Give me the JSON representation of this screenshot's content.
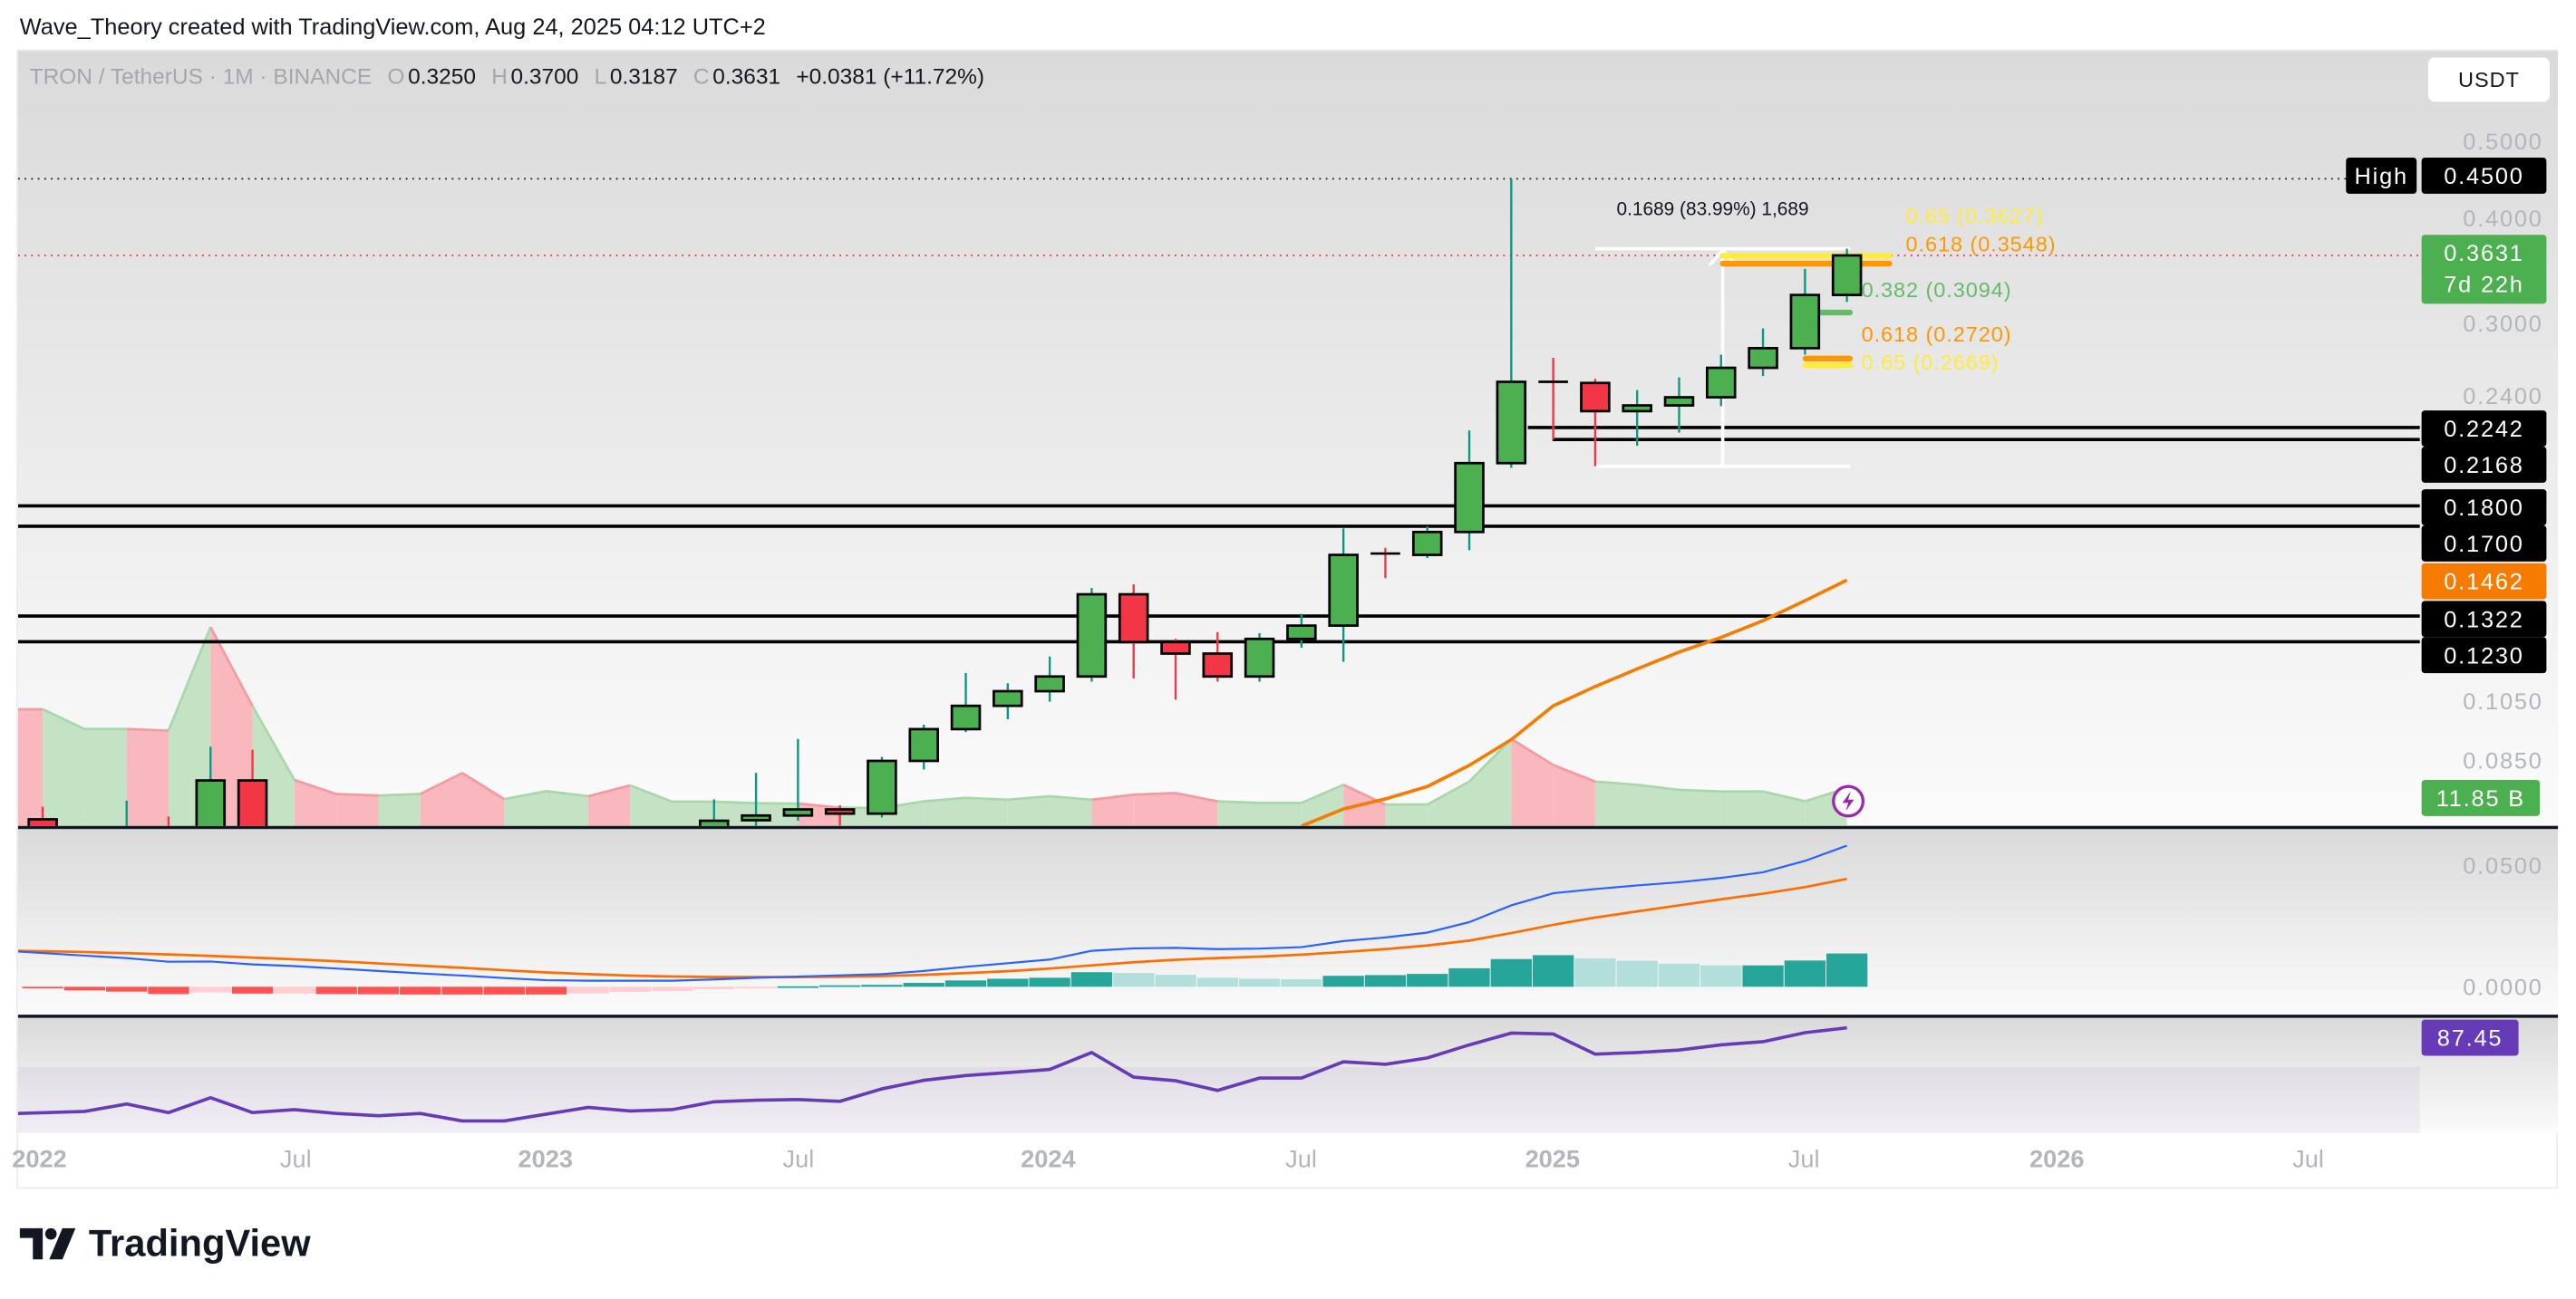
{
  "header": {
    "attribution": "Wave_Theory created with TradingView.com, Aug 24, 2025 04:12 UTC+2"
  },
  "legend": {
    "symbol": "TRON / TetherUS · 1M · BINANCE",
    "o_label": "O",
    "o": "0.3250",
    "h_label": "H",
    "h": "0.3700",
    "l_label": "L",
    "l": "0.3187",
    "c_label": "C",
    "c": "0.3631",
    "change": "+0.0381 (+11.72%)"
  },
  "currency_button": "USDT",
  "price_axis": {
    "ticks": [
      "0.5000",
      "0.4000",
      "0.3000",
      "0.2400",
      "0.1050",
      "0.0850"
    ]
  },
  "tags": {
    "high_label": "High",
    "high_value": "0.4500",
    "last_price": "0.3631",
    "countdown": "7d 22h",
    "levels": [
      "0.2242",
      "0.2168",
      "0.1800",
      "0.1700",
      "0.1462",
      "0.1322",
      "0.1230"
    ],
    "volume": "11.85 B",
    "rsi": "87.45"
  },
  "macd_axis": {
    "ticks": [
      "0.0500",
      "0.0000"
    ]
  },
  "time_axis": {
    "labels": [
      "2022",
      "Jul",
      "2023",
      "Jul",
      "2024",
      "Jul",
      "2025",
      "Jul",
      "2026",
      "Jul"
    ]
  },
  "fib": {
    "measure": "0.1689 (83.99%) 1,689",
    "upper_65": "0.65 (0.3627)",
    "upper_618": "0.618 (0.3548)",
    "mid_382": "0.382 (0.3094)",
    "lower_618": "0.618 (0.2720)",
    "lower_65": "0.65 (0.2669)"
  },
  "logo": "TradingView",
  "colors": {
    "up": "#4caf50",
    "down": "#f23645",
    "wick_up": "#089981",
    "ema": "#f57c00",
    "macd": "#2962ff",
    "signal": "#ff6d00",
    "rsi": "#673ab7",
    "fib_yellow": "#ffeb3b",
    "fib_orange": "#ff9800",
    "fib_green": "#66bb6a",
    "last_price": "#4caf50",
    "level": "#000000"
  },
  "chart_data": {
    "type": "candlestick",
    "symbol": "TRON / TetherUS",
    "interval": "1M",
    "exchange": "BINANCE",
    "y_scale": "log",
    "ylim": [
      0.0734,
      0.53
    ],
    "x_range": [
      "2022-01",
      "2026-09"
    ],
    "candles": [
      {
        "date": "2022-01",
        "o": 0.0748,
        "h": 0.0775,
        "l": 0.055,
        "c": 0.062
      },
      {
        "date": "2022-03",
        "o": 0.062,
        "h": 0.0788,
        "l": 0.058,
        "c": 0.066
      },
      {
        "date": "2022-04",
        "o": 0.066,
        "h": 0.0754,
        "l": 0.06,
        "c": 0.065
      },
      {
        "date": "2022-05",
        "o": 0.065,
        "h": 0.0917,
        "l": 0.06,
        "c": 0.0834
      },
      {
        "date": "2022-06",
        "o": 0.0834,
        "h": 0.0909,
        "l": 0.052,
        "c": 0.065
      },
      {
        "date": "2023-05",
        "o": 0.07,
        "h": 0.0791,
        "l": 0.068,
        "c": 0.0745
      },
      {
        "date": "2023-06",
        "o": 0.0746,
        "h": 0.0852,
        "l": 0.072,
        "c": 0.0756
      },
      {
        "date": "2023-07",
        "o": 0.0756,
        "h": 0.0937,
        "l": 0.0745,
        "c": 0.0769
      },
      {
        "date": "2023-08",
        "o": 0.0769,
        "h": 0.0778,
        "l": 0.0735,
        "c": 0.076
      },
      {
        "date": "2023-09",
        "o": 0.076,
        "h": 0.0891,
        "l": 0.0752,
        "c": 0.0881
      },
      {
        "date": "2023-10",
        "o": 0.0881,
        "h": 0.0975,
        "l": 0.086,
        "c": 0.0963
      },
      {
        "date": "2023-11",
        "o": 0.0963,
        "h": 0.1127,
        "l": 0.0955,
        "c": 0.1028
      },
      {
        "date": "2023-12",
        "o": 0.1028,
        "h": 0.1095,
        "l": 0.099,
        "c": 0.1071
      },
      {
        "date": "2024-01",
        "o": 0.1071,
        "h": 0.118,
        "l": 0.104,
        "c": 0.1116
      },
      {
        "date": "2024-02",
        "o": 0.1116,
        "h": 0.143,
        "l": 0.11,
        "c": 0.1405
      },
      {
        "date": "2024-03",
        "o": 0.1405,
        "h": 0.1445,
        "l": 0.111,
        "c": 0.1229
      },
      {
        "date": "2024-04",
        "o": 0.1229,
        "h": 0.124,
        "l": 0.1046,
        "c": 0.119
      },
      {
        "date": "2024-05",
        "o": 0.119,
        "h": 0.1264,
        "l": 0.11,
        "c": 0.1116
      },
      {
        "date": "2024-06",
        "o": 0.1116,
        "h": 0.126,
        "l": 0.11,
        "c": 0.124
      },
      {
        "date": "2024-07",
        "o": 0.124,
        "h": 0.133,
        "l": 0.121,
        "c": 0.1287
      },
      {
        "date": "2024-08",
        "o": 0.1287,
        "h": 0.169,
        "l": 0.1163,
        "c": 0.1569
      },
      {
        "date": "2024-09",
        "o": 0.1575,
        "h": 0.16,
        "l": 0.147,
        "c": 0.1569
      },
      {
        "date": "2024-10",
        "o": 0.1569,
        "h": 0.17,
        "l": 0.1555,
        "c": 0.1673
      },
      {
        "date": "2024-11",
        "o": 0.1673,
        "h": 0.2224,
        "l": 0.159,
        "c": 0.2029
      },
      {
        "date": "2024-12",
        "o": 0.2029,
        "h": 0.45,
        "l": 0.2003,
        "c": 0.2548
      },
      {
        "date": "2025-01",
        "o": 0.2548,
        "h": 0.2725,
        "l": 0.2168,
        "c": 0.254
      },
      {
        "date": "2025-02",
        "o": 0.254,
        "h": 0.257,
        "l": 0.2011,
        "c": 0.2347
      },
      {
        "date": "2025-03",
        "o": 0.2347,
        "h": 0.249,
        "l": 0.213,
        "c": 0.2385
      },
      {
        "date": "2025-04",
        "o": 0.2385,
        "h": 0.258,
        "l": 0.221,
        "c": 0.244
      },
      {
        "date": "2025-05",
        "o": 0.244,
        "h": 0.275,
        "l": 0.238,
        "c": 0.265
      },
      {
        "date": "2025-06",
        "o": 0.265,
        "h": 0.296,
        "l": 0.259,
        "c": 0.28
      },
      {
        "date": "2025-07",
        "o": 0.28,
        "h": 0.3496,
        "l": 0.275,
        "c": 0.325
      },
      {
        "date": "2025-08",
        "o": 0.325,
        "h": 0.37,
        "l": 0.3187,
        "c": 0.3631
      }
    ],
    "volume_unit": "B",
    "volume": [
      {
        "date": "2022-01",
        "v": 36.6,
        "up": false
      },
      {
        "date": "2022-02",
        "v": 30.4,
        "up": true
      },
      {
        "date": "2022-03",
        "v": 30.4,
        "up": true
      },
      {
        "date": "2022-04",
        "v": 29.9,
        "up": false
      },
      {
        "date": "2022-05",
        "v": 62.4,
        "up": true
      },
      {
        "date": "2022-06",
        "v": 37.6,
        "up": false
      },
      {
        "date": "2022-07",
        "v": 14.4,
        "up": true
      },
      {
        "date": "2022-08",
        "v": 10.0,
        "up": false
      },
      {
        "date": "2022-09",
        "v": 9.5,
        "up": false
      },
      {
        "date": "2022-10",
        "v": 10.0,
        "up": true
      },
      {
        "date": "2022-11",
        "v": 16.6,
        "up": false
      },
      {
        "date": "2022-12",
        "v": 8.4,
        "up": false
      },
      {
        "date": "2023-01",
        "v": 10.9,
        "up": true
      },
      {
        "date": "2023-02",
        "v": 9.3,
        "up": true
      },
      {
        "date": "2023-03",
        "v": 12.7,
        "up": false
      },
      {
        "date": "2023-04",
        "v": 7.6,
        "up": true
      },
      {
        "date": "2023-05",
        "v": 7.6,
        "up": true
      },
      {
        "date": "2023-06",
        "v": 7.1,
        "up": true
      },
      {
        "date": "2023-07",
        "v": 7.0,
        "up": true
      },
      {
        "date": "2023-08",
        "v": 5.7,
        "up": false
      },
      {
        "date": "2023-09",
        "v": 5.6,
        "up": true
      },
      {
        "date": "2023-10",
        "v": 7.7,
        "up": true
      },
      {
        "date": "2023-11",
        "v": 8.8,
        "up": true
      },
      {
        "date": "2023-12",
        "v": 8.2,
        "up": true
      },
      {
        "date": "2024-01",
        "v": 9.3,
        "up": true
      },
      {
        "date": "2024-02",
        "v": 8.2,
        "up": true
      },
      {
        "date": "2024-03",
        "v": 9.8,
        "up": false
      },
      {
        "date": "2024-04",
        "v": 10.3,
        "up": false
      },
      {
        "date": "2024-05",
        "v": 7.7,
        "up": false
      },
      {
        "date": "2024-06",
        "v": 7.2,
        "up": true
      },
      {
        "date": "2024-07",
        "v": 7.2,
        "up": true
      },
      {
        "date": "2024-08",
        "v": 12.9,
        "up": true
      },
      {
        "date": "2024-09",
        "v": 6.7,
        "up": false
      },
      {
        "date": "2024-10",
        "v": 6.7,
        "up": true
      },
      {
        "date": "2024-11",
        "v": 13.9,
        "up": true
      },
      {
        "date": "2024-12",
        "v": 27.3,
        "up": true
      },
      {
        "date": "2025-01",
        "v": 19.1,
        "up": false
      },
      {
        "date": "2025-02",
        "v": 13.9,
        "up": false
      },
      {
        "date": "2025-03",
        "v": 12.9,
        "up": true
      },
      {
        "date": "2025-04",
        "v": 11.3,
        "up": true
      },
      {
        "date": "2025-05",
        "v": 10.8,
        "up": true
      },
      {
        "date": "2025-06",
        "v": 10.8,
        "up": true
      },
      {
        "date": "2025-07",
        "v": 7.7,
        "up": true
      },
      {
        "date": "2025-08",
        "v": 11.85,
        "up": true
      }
    ],
    "moving_average": [
      {
        "date": "2024-07",
        "v": 0.0734
      },
      {
        "date": "2024-08",
        "v": 0.077
      },
      {
        "date": "2024-09",
        "v": 0.0792
      },
      {
        "date": "2024-10",
        "v": 0.082
      },
      {
        "date": "2024-11",
        "v": 0.087
      },
      {
        "date": "2024-12",
        "v": 0.0935
      },
      {
        "date": "2025-01",
        "v": 0.1028
      },
      {
        "date": "2025-02",
        "v": 0.1085
      },
      {
        "date": "2025-03",
        "v": 0.114
      },
      {
        "date": "2025-04",
        "v": 0.1195
      },
      {
        "date": "2025-05",
        "v": 0.1245
      },
      {
        "date": "2025-06",
        "v": 0.1305
      },
      {
        "date": "2025-07",
        "v": 0.138
      },
      {
        "date": "2025-08",
        "v": 0.1462
      }
    ],
    "horizontal_levels": [
      0.2242,
      0.2168,
      0.18,
      0.17,
      0.1322,
      0.123
    ],
    "all_time_high": 0.45,
    "last_price": 0.3631,
    "fib_measure": {
      "low": 0.2011,
      "high": 0.37,
      "from": "2025-02",
      "to": "2025-08"
    },
    "fib_levels": [
      0.3627,
      0.3548,
      0.3094,
      0.272,
      0.2669
    ],
    "macd": {
      "ylim": [
        -0.006,
        0.065
      ],
      "start": "2022-01",
      "macd": [
        0.0145,
        0.0128,
        0.0118,
        0.0103,
        0.0104,
        0.0092,
        0.0085,
        0.0075,
        0.0065,
        0.0055,
        0.0046,
        0.0036,
        0.0027,
        0.0025,
        0.0025,
        0.0025,
        0.003,
        0.0037,
        0.0042,
        0.0047,
        0.0052,
        0.0065,
        0.0082,
        0.0097,
        0.0112,
        0.0148,
        0.0158,
        0.016,
        0.0155,
        0.0157,
        0.0163,
        0.0188,
        0.0203,
        0.0223,
        0.0266,
        0.0335,
        0.0385,
        0.0402,
        0.0417,
        0.043,
        0.0448,
        0.0471,
        0.0518,
        0.0581
      ],
      "signal": [
        0.0148,
        0.0143,
        0.0138,
        0.0133,
        0.0127,
        0.012,
        0.0113,
        0.0105,
        0.0096,
        0.0087,
        0.0078,
        0.0068,
        0.0059,
        0.0052,
        0.0046,
        0.0042,
        0.004,
        0.004,
        0.004,
        0.0041,
        0.0044,
        0.0049,
        0.0056,
        0.0064,
        0.0075,
        0.0088,
        0.0101,
        0.0111,
        0.0118,
        0.0124,
        0.0132,
        0.0143,
        0.0155,
        0.017,
        0.019,
        0.0221,
        0.0255,
        0.0285,
        0.031,
        0.0335,
        0.036,
        0.0383,
        0.041,
        0.0444
      ]
    },
    "rsi": {
      "start": "2022-01",
      "band": [
        30,
        70
      ],
      "values": [
        49.5,
        50.4,
        53.7,
        49.9,
        56.5,
        49.9,
        51.2,
        49.5,
        48.5,
        49.5,
        46.2,
        46.2,
        49.2,
        52.2,
        50.6,
        51.2,
        54.7,
        55.4,
        55.7,
        54.9,
        60.4,
        64.2,
        66.3,
        67.6,
        69.0,
        76.5,
        65.6,
        64.0,
        59.7,
        65.2,
        65.2,
        72.4,
        71.3,
        74.1,
        79.9,
        85.1,
        84.7,
        75.8,
        76.5,
        77.6,
        79.9,
        81.3,
        85.3,
        87.45
      ]
    }
  }
}
